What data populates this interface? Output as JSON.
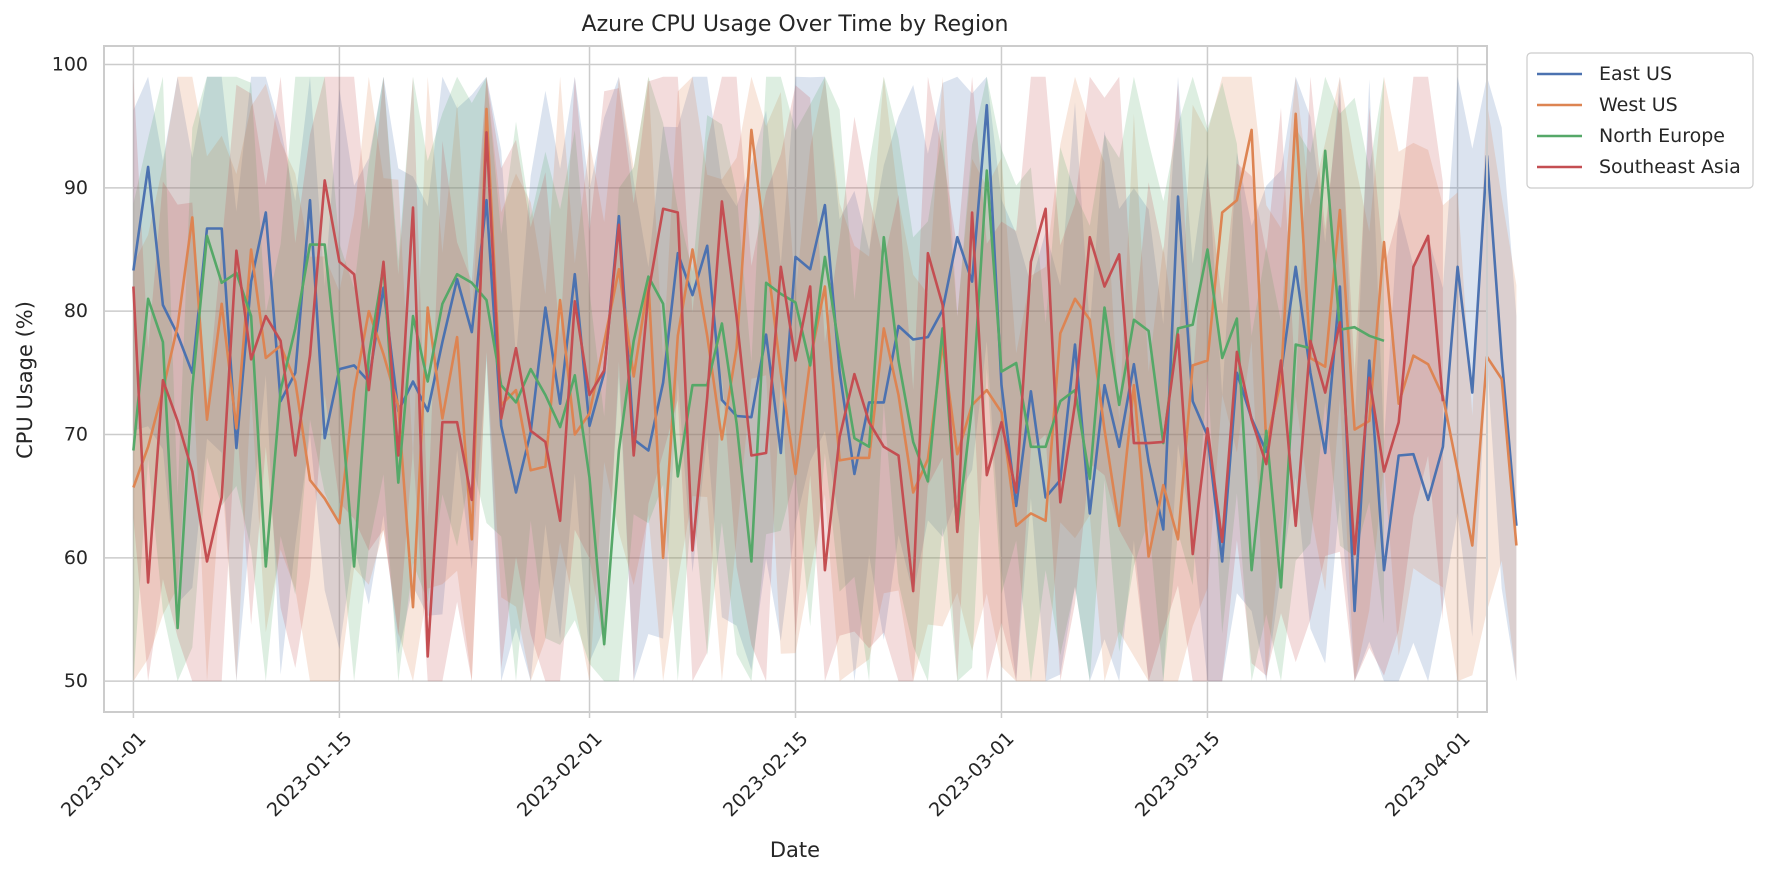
{
  "chart_data": {
    "type": "line",
    "title": "Azure CPU Usage Over Time by Region",
    "xlabel": "Date",
    "ylabel": "CPU Usage (%)",
    "x_domain": [
      "2022-12-30",
      "2023-04-03"
    ],
    "ylim": [
      47.5,
      101.5
    ],
    "x_ticks": [
      "2023-01-01",
      "2023-01-15",
      "2023-02-01",
      "2023-02-15",
      "2023-03-01",
      "2023-03-15",
      "2023-04-01"
    ],
    "y_ticks": [
      50,
      60,
      70,
      80,
      90,
      100
    ],
    "grid": true,
    "legend": "outside top-right",
    "x_start": "2023-01-01",
    "x_step_days": 1,
    "series": [
      {
        "name": "East US",
        "color": "#4c72b0",
        "values": [
          83.3,
          91.7,
          80.5,
          78.1,
          75.0,
          86.7,
          86.7,
          68.9,
          82.4,
          88.0,
          72.7,
          75.0,
          89.0,
          69.7,
          75.3,
          75.6,
          74.3,
          81.9,
          71.9,
          74.3,
          71.9,
          77.5,
          82.6,
          78.3,
          89.0,
          70.7,
          65.3,
          70.2,
          80.3,
          72.5,
          83.0,
          70.7,
          75.0,
          87.7,
          69.6,
          68.7,
          74.2,
          84.7,
          81.3,
          85.3,
          72.8,
          71.5,
          71.4,
          78.1,
          68.5,
          84.4,
          83.4,
          88.6,
          75.1,
          66.8,
          72.6,
          72.6,
          78.8,
          77.7,
          77.9,
          80.1,
          86.0,
          82.4,
          96.7,
          74.0,
          64.2,
          73.5,
          64.9,
          66.3,
          77.3,
          63.6,
          74.0,
          69.0,
          75.7,
          67.8,
          62.3,
          89.3,
          72.7,
          69.9,
          59.7,
          75.0,
          71.3,
          68.6,
          75.0,
          83.6,
          75.0,
          68.5,
          82.0,
          55.7,
          76.0,
          59.0,
          68.3,
          68.4,
          64.7,
          69.0,
          83.6,
          73.4,
          92.6,
          76.2,
          62.6
        ]
      },
      {
        "name": "West US",
        "color": "#dd8452",
        "values": [
          65.7,
          69.0,
          73.6,
          78.8,
          87.6,
          71.2,
          80.6,
          70.5,
          85.0,
          76.2,
          77.2,
          74.3,
          66.3,
          64.8,
          62.8,
          73.5,
          80.0,
          76.5,
          72.3,
          56.0,
          80.3,
          71.3,
          77.9,
          61.5,
          96.4,
          72.4,
          73.6,
          67.1,
          67.4,
          80.9,
          70.0,
          71.7,
          77.5,
          83.4,
          74.7,
          82.4,
          60.0,
          78.0,
          85.0,
          78.0,
          69.6,
          77.0,
          94.7,
          84.9,
          75.0,
          66.8,
          76.0,
          82.0,
          67.9,
          68.1,
          68.1,
          78.6,
          73.2,
          65.3,
          68.0,
          77.3,
          68.4,
          72.4,
          73.6,
          71.8,
          62.6,
          63.6,
          63.0,
          78.2,
          81.0,
          79.3,
          70.4,
          62.6,
          74.0,
          60.1,
          65.9,
          61.5,
          75.6,
          76.0,
          88.0,
          89.0,
          94.7,
          69.2,
          74.4,
          96.0,
          76.2,
          75.5,
          88.2,
          70.4,
          71.1,
          85.6,
          72.5,
          76.4,
          75.7,
          73.1,
          67.1,
          61.0,
          76.3,
          74.5,
          61.0
        ]
      },
      {
        "name": "North Europe",
        "color": "#55a868",
        "values": [
          68.7,
          81.0,
          77.5,
          54.3,
          73.8,
          86.1,
          82.3,
          83.1,
          79.6,
          59.3,
          73.6,
          78.6,
          85.4,
          85.4,
          74.0,
          59.3,
          76.4,
          83.6,
          66.1,
          79.6,
          74.3,
          80.6,
          83.0,
          82.3,
          80.9,
          74.0,
          72.6,
          75.3,
          73.2,
          70.6,
          74.8,
          66.5,
          53.0,
          68.7,
          77.6,
          82.8,
          80.6,
          66.6,
          74.0,
          74.0,
          79.0,
          70.9,
          59.7,
          82.3,
          81.4,
          80.7,
          75.6,
          84.4,
          76.8,
          69.7,
          69.0,
          86.0,
          76.0,
          69.4,
          66.2,
          78.6,
          62.2,
          72.3,
          91.4,
          75.1,
          75.8,
          69.0,
          69.0,
          72.7,
          73.6,
          66.4,
          80.3,
          72.4,
          79.3,
          78.4,
          69.3,
          78.6,
          78.9,
          85.0,
          76.2,
          79.4,
          59.0,
          70.3,
          57.6,
          77.3,
          77.0,
          93.0,
          78.5,
          78.7,
          78.0,
          77.6
        ]
      },
      {
        "name": "Southeast Asia",
        "color": "#c44e52",
        "values": [
          82.0,
          58.0,
          74.4,
          71.1,
          67.0,
          59.7,
          64.9,
          84.9,
          76.1,
          79.6,
          77.6,
          68.3,
          76.4,
          90.6,
          84.0,
          83.0,
          73.6,
          84.0,
          68.3,
          88.4,
          52.0,
          71.0,
          71.0,
          64.7,
          94.5,
          71.3,
          77.0,
          70.3,
          69.4,
          63.0,
          80.8,
          73.2,
          75.2,
          87.0,
          68.3,
          81.5,
          88.3,
          88.0,
          60.6,
          73.0,
          88.9,
          79.5,
          68.3,
          68.5,
          83.6,
          76.0,
          82.0,
          59.0,
          69.8,
          74.9,
          71.0,
          69.0,
          68.3,
          57.3,
          84.7,
          80.5,
          62.1,
          88.0,
          66.7,
          71.0,
          65.3,
          84.0,
          88.3,
          64.5,
          72.5,
          86.0,
          82.0,
          84.6,
          69.3,
          69.3,
          69.4,
          78.1,
          60.3,
          70.5,
          61.3,
          76.7,
          71.2,
          67.6,
          76.0,
          62.6,
          77.6,
          73.4,
          79.1,
          60.3,
          74.6,
          67.0,
          71.0,
          83.6,
          86.1,
          72.7
        ]
      }
    ]
  }
}
